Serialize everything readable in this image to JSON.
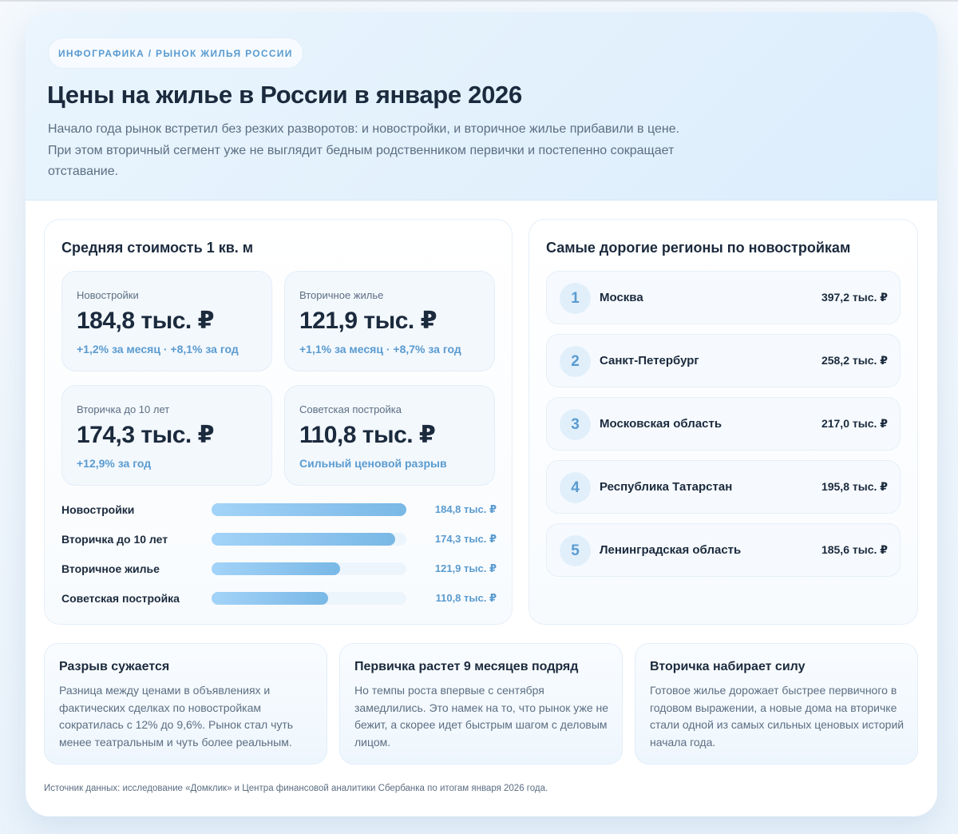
{
  "hero": {
    "kicker": "ИНФОГРАФИКА / РЫНОК ЖИЛЬЯ РОССИИ",
    "title": "Цены на жилье в России в январе 2026",
    "lede": "Начало года рынок встретил без резких разворотов: и новостройки, и вторичное жилье прибавили в цене. При этом вторичный сегмент уже не выглядит бедным родственником первички и постепенно сокращает отставание."
  },
  "avg_price": {
    "title": "Средняя стоимость 1 кв. м",
    "stats": [
      {
        "label": "Новостройки",
        "value": "184,8 тыс. ₽",
        "delta": "+1,2% за месяц · +8,1% за год"
      },
      {
        "label": "Вторичное жилье",
        "value": "121,9 тыс. ₽",
        "delta": "+1,1% за месяц · +8,7% за год"
      },
      {
        "label": "Вторичка до 10 лет",
        "value": "174,3 тыс. ₽",
        "delta": "+12,9% за год"
      },
      {
        "label": "Советская постройка",
        "value": "110,8 тыс. ₽",
        "delta": "Сильный ценовой разрыв"
      }
    ],
    "bars": [
      {
        "label": "Новостройки",
        "value_label": "184,8 тыс. ₽",
        "width": "100%"
      },
      {
        "label": "Вторичка до 10 лет",
        "value_label": "174,3 тыс. ₽",
        "width": "94.3%"
      },
      {
        "label": "Вторичное жилье",
        "value_label": "121,9 тыс. ₽",
        "width": "66%"
      },
      {
        "label": "Советская постройка",
        "value_label": "110,8 тыс. ₽",
        "width": "60%"
      }
    ]
  },
  "regions": {
    "title": "Самые дорогие регионы по новостройкам",
    "items": [
      {
        "rank": "1",
        "name": "Москва",
        "value": "397,2 тыс. ₽"
      },
      {
        "rank": "2",
        "name": "Санкт-Петербург",
        "value": "258,2 тыс. ₽"
      },
      {
        "rank": "3",
        "name": "Московская область",
        "value": "217,0 тыс. ₽"
      },
      {
        "rank": "4",
        "name": "Республика Татарстан",
        "value": "195,8 тыс. ₽"
      },
      {
        "rank": "5",
        "name": "Ленинградская область",
        "value": "185,6 тыс. ₽"
      }
    ]
  },
  "notes": [
    {
      "title": "Разрыв сужается",
      "text": "Разница между ценами в объявлениях и фактических сделках по новостройкам сократилась с 12% до 9,6%. Рынок стал чуть менее театральным и чуть более реальным."
    },
    {
      "title": "Первичка растет 9 месяцев подряд",
      "text": "Но темпы роста впервые с сентября замедлились. Это намек на то, что рынок уже не бежит, а скорее идет быстрым шагом с деловым лицом."
    },
    {
      "title": "Вторичка набирает силу",
      "text": "Готовое жилье дорожает быстрее первичного в годовом выражении, а новые дома на вторичке стали одной из самых сильных ценовых историй начала года."
    }
  ],
  "source": "Источник данных: исследование «Домклик» и Центра финансовой аналитики Сбербанка по итогам января 2026 года.",
  "colors": {
    "accent": "#5a9bd0",
    "text": "#1b2a3d",
    "muted": "#5c6e82",
    "bar_start": "#a3d3f8",
    "bar_end": "#79b8e6"
  },
  "chart_data": [
    {
      "type": "bar",
      "orientation": "horizontal",
      "title": "Средняя стоимость 1 кв. м",
      "categories": [
        "Новостройки",
        "Вторичка до 10 лет",
        "Вторичное жилье",
        "Советская постройка"
      ],
      "values": [
        184.8,
        174.3,
        121.9,
        110.8
      ],
      "unit": "тыс. ₽",
      "xlabel": "",
      "ylabel": "",
      "grid": false,
      "legend": null
    },
    {
      "type": "table",
      "title": "Самые дорогие регионы по новостройкам",
      "categories": [
        "Москва",
        "Санкт-Петербург",
        "Московская область",
        "Республика Татарстан",
        "Ленинградская область"
      ],
      "values": [
        397.2,
        258.2,
        217.0,
        195.8,
        185.6
      ],
      "unit": "тыс. ₽"
    }
  ]
}
